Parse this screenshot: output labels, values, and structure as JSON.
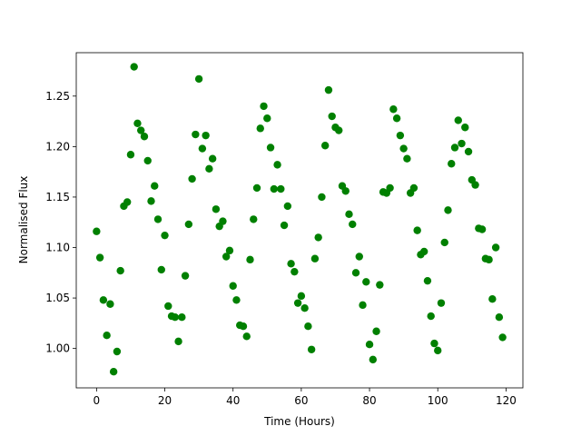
{
  "chart_data": {
    "type": "scatter",
    "xlabel": "Time (Hours)",
    "ylabel": "Normalised Flux",
    "color": "#008000",
    "x": [
      0,
      1,
      2,
      3,
      4,
      5,
      6,
      7,
      8,
      9,
      10,
      11,
      12,
      13,
      14,
      15,
      16,
      17,
      18,
      19,
      20,
      21,
      22,
      23,
      24,
      25,
      26,
      27,
      28,
      29,
      30,
      31,
      32,
      33,
      34,
      35,
      36,
      37,
      38,
      39,
      40,
      41,
      42,
      43,
      44,
      45,
      46,
      47,
      48,
      49,
      50,
      51,
      52,
      53,
      54,
      55,
      56,
      57,
      58,
      59,
      60,
      61,
      62,
      63,
      64,
      65,
      66,
      67,
      68,
      69,
      70,
      71,
      72,
      73,
      74,
      75,
      76,
      77,
      78,
      79,
      80,
      81,
      82,
      83,
      84,
      85,
      86,
      87,
      88,
      89,
      90,
      91,
      92,
      93,
      94,
      95,
      96,
      97,
      98,
      99,
      100,
      101,
      102,
      103,
      104,
      105,
      106,
      107,
      108,
      109,
      110,
      111,
      112,
      113,
      114,
      115,
      116,
      117,
      118,
      119
    ],
    "values": [
      1.116,
      1.09,
      1.048,
      1.013,
      1.044,
      0.977,
      0.997,
      1.077,
      1.141,
      1.145,
      1.192,
      1.279,
      1.223,
      1.216,
      1.21,
      1.186,
      1.146,
      1.161,
      1.128,
      1.078,
      1.112,
      1.042,
      1.032,
      1.031,
      1.007,
      1.031,
      1.072,
      1.123,
      1.168,
      1.212,
      1.267,
      1.198,
      1.211,
      1.178,
      1.188,
      1.138,
      1.121,
      1.126,
      1.091,
      1.097,
      1.062,
      1.048,
      1.023,
      1.022,
      1.012,
      1.088,
      1.128,
      1.159,
      1.218,
      1.24,
      1.228,
      1.199,
      1.158,
      1.182,
      1.158,
      1.122,
      1.141,
      1.084,
      1.076,
      1.045,
      1.052,
      1.04,
      1.022,
      0.999,
      1.089,
      1.11,
      1.15,
      1.201,
      1.256,
      1.23,
      1.219,
      1.216,
      1.161,
      1.156,
      1.133,
      1.123,
      1.075,
      1.091,
      1.043,
      1.066,
      1.004,
      0.989,
      1.017,
      1.063,
      1.155,
      1.154,
      1.159,
      1.237,
      1.228,
      1.211,
      1.198,
      1.188,
      1.154,
      1.159,
      1.117,
      1.093,
      1.096,
      1.067,
      1.032,
      1.005,
      0.998,
      1.045,
      1.105,
      1.137,
      1.183,
      1.199,
      1.226,
      1.203,
      1.219,
      1.195,
      1.167,
      1.162,
      1.119,
      1.118,
      1.089,
      1.088,
      1.049,
      1.1,
      1.031,
      1.011
    ],
    "xlim": [
      -5.95,
      124.95
    ],
    "ylim": [
      0.961,
      1.293
    ],
    "xticks": [
      0,
      20,
      40,
      60,
      80,
      100,
      120
    ],
    "yticks": [
      {
        "value": 1.0,
        "label": "1.00"
      },
      {
        "value": 1.05,
        "label": "1.05"
      },
      {
        "value": 1.1,
        "label": "1.10"
      },
      {
        "value": 1.15,
        "label": "1.15"
      },
      {
        "value": 1.2,
        "label": "1.20"
      },
      {
        "value": 1.25,
        "label": "1.25"
      }
    ]
  }
}
